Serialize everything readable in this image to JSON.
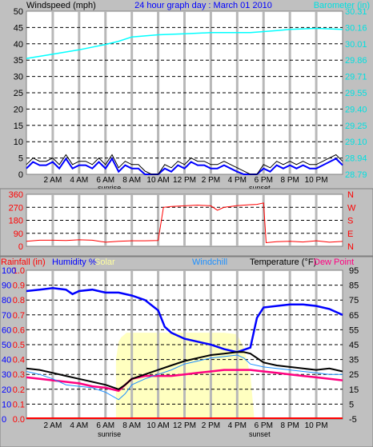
{
  "header": {
    "windspeed_label": "Windspeed (mph)",
    "title": "24 hour graph day : March 01 2010",
    "barometer_label": "Barometer (in)"
  },
  "time_axis": {
    "ticks": [
      "2 AM",
      "4 AM",
      "6 AM",
      "8 AM",
      "10 AM",
      "12 PM",
      "2 PM",
      "4 PM",
      "6 PM",
      "8 PM",
      "10 PM"
    ],
    "sunrise": "sunrise",
    "sunset": "sunset"
  },
  "colors": {
    "wind": "#000000",
    "gust": "#0000ff",
    "barometer": "#00ffff",
    "direction": "#ff0000",
    "rainfall": "#ff0000",
    "humidity": "#0000ff",
    "solar": "#ffffc0",
    "windchill": "#1e90ff",
    "temperature": "#000000",
    "dewpoint": "#ff0080",
    "axis_left_bottom": "#0000ff"
  },
  "chart_data": [
    {
      "type": "line",
      "panel": "wind_barometer",
      "title": "24 hour graph day : March 01 2010",
      "ylabel": "Windspeed (mph)",
      "ylim": [
        0,
        50
      ],
      "yticks": [
        0,
        5,
        10,
        15,
        20,
        25,
        30,
        35,
        40,
        45,
        50
      ],
      "y2label": "Barometer (in)",
      "y2lim": [
        28.79,
        30.31
      ],
      "y2ticks": [
        "28.79",
        "28.94",
        "29.10",
        "29.25",
        "29.40",
        "29.55",
        "29.71",
        "29.86",
        "30.01",
        "30.16",
        "30.31"
      ],
      "x_hours": [
        0,
        24
      ],
      "grid": true,
      "series": [
        {
          "name": "Windspeed (mph)",
          "x": [
            0,
            0.5,
            1,
            1.5,
            2,
            2.5,
            3,
            3.5,
            4,
            4.5,
            5,
            5.5,
            6,
            6.5,
            7,
            7.5,
            8,
            8.5,
            9,
            9.5,
            10,
            10.5,
            11,
            11.5,
            12,
            12.5,
            13,
            13.5,
            14,
            14.5,
            15,
            15.5,
            16,
            16.5,
            17,
            17.5,
            18,
            18.5,
            19,
            19.5,
            20,
            20.5,
            21,
            21.5,
            22,
            22.5,
            23,
            23.5,
            24
          ],
          "values": [
            3,
            5,
            4,
            4,
            5,
            3,
            6,
            3,
            4,
            4,
            3,
            5,
            3,
            6,
            2,
            4,
            3,
            3,
            1,
            0,
            0,
            3,
            2,
            4,
            3,
            5,
            4,
            4,
            3,
            3,
            4,
            3,
            2,
            1,
            0,
            0,
            3,
            2,
            4,
            3,
            4,
            3,
            4,
            3,
            3,
            4,
            5,
            6,
            4
          ]
        },
        {
          "name": "Barometer (in)",
          "x": [
            0,
            2,
            4,
            6,
            7,
            8,
            10,
            12,
            14,
            16,
            17,
            18,
            19,
            20,
            22,
            24
          ],
          "values": [
            29.87,
            29.91,
            29.95,
            30.0,
            30.03,
            30.07,
            30.09,
            30.1,
            30.11,
            30.11,
            30.11,
            30.12,
            30.13,
            30.14,
            30.15,
            30.14
          ]
        }
      ]
    },
    {
      "type": "line",
      "panel": "wind_direction",
      "ylim": [
        0,
        360
      ],
      "yticks": [
        0,
        90,
        180,
        270,
        360
      ],
      "y2ticks": [
        "N",
        "W",
        "S",
        "E",
        "N"
      ],
      "series": [
        {
          "name": "Wind direction",
          "x": [
            0,
            1,
            2,
            3,
            4,
            5,
            6,
            7,
            8,
            9,
            10,
            10.4,
            11,
            12,
            13,
            14,
            14.5,
            15,
            15.5,
            16,
            17,
            17.5,
            18,
            18.2,
            19,
            20,
            21,
            22,
            23,
            24
          ],
          "values": [
            35,
            42,
            42,
            40,
            45,
            42,
            28,
            35,
            38,
            38,
            40,
            270,
            275,
            280,
            285,
            280,
            250,
            270,
            275,
            282,
            288,
            290,
            300,
            25,
            32,
            35,
            30,
            38,
            28,
            34
          ]
        }
      ]
    },
    {
      "type": "line",
      "panel": "temperature",
      "ylabel": "Temperature (°F)",
      "ylim": [
        -5,
        95
      ],
      "yticks": [
        -5,
        5,
        15,
        25,
        35,
        45,
        55,
        65,
        75,
        85,
        95
      ],
      "left_axis": {
        "labels": [
          "0.0",
          "0.1",
          "0.2",
          "0.3",
          "0.4",
          "0.5",
          "0.6",
          "0.7",
          "0.8",
          "0.9",
          "1.0"
        ],
        "humidity_labels": [
          "0",
          "10",
          "20",
          "30",
          "40",
          "50",
          "60",
          "70",
          "80",
          "90",
          "100"
        ]
      },
      "legend": [
        "Rainfall (in)",
        "Humidity %",
        "Solar",
        "Windchill",
        "Temperature (°F)",
        "Dew Point"
      ],
      "series": [
        {
          "name": "Temperature",
          "x": [
            0,
            1,
            2,
            3,
            4,
            5,
            6,
            7,
            7.5,
            8,
            9,
            10,
            11,
            12,
            13,
            14,
            15,
            16,
            16.5,
            17,
            18,
            19,
            20,
            21,
            22,
            23,
            24
          ],
          "values": [
            29,
            28,
            26,
            24,
            22,
            20,
            18,
            15,
            18,
            22,
            25,
            28,
            31,
            34,
            36,
            38,
            39,
            40,
            40,
            39,
            33,
            31,
            30,
            29,
            28,
            29,
            27
          ]
        },
        {
          "name": "Windchill",
          "x": [
            0,
            1,
            2,
            3,
            4,
            5,
            6,
            7,
            7.5,
            8,
            9,
            10,
            11,
            12,
            13,
            14,
            15,
            16,
            16.5,
            17,
            18,
            19,
            20,
            21,
            22,
            23,
            24
          ],
          "values": [
            27,
            25,
            22,
            18,
            17,
            16,
            13,
            8,
            12,
            18,
            22,
            25,
            28,
            32,
            34,
            36,
            37,
            38,
            36,
            32,
            30,
            29,
            28,
            27,
            26,
            25,
            25
          ]
        },
        {
          "name": "Dew Point",
          "x": [
            0,
            1,
            2,
            3,
            4,
            5,
            6,
            7,
            7.5,
            8,
            9,
            10,
            11,
            12,
            13,
            14,
            15,
            16,
            17,
            18,
            19,
            20,
            21,
            22,
            23,
            24
          ],
          "values": [
            23,
            22,
            21,
            20,
            19,
            17,
            16,
            14,
            18,
            22,
            24,
            24,
            24,
            25,
            26,
            27,
            28,
            28,
            28,
            27,
            26,
            25,
            24,
            23,
            22,
            21
          ]
        },
        {
          "name": "Humidity",
          "x": [
            0,
            1,
            2,
            3,
            3.5,
            4,
            5,
            6,
            7,
            8,
            9,
            10,
            10.5,
            11,
            12,
            13,
            14,
            15,
            16,
            17,
            17.5,
            18,
            19,
            20,
            21,
            22,
            23,
            24
          ],
          "values": [
            86,
            87,
            88,
            87,
            84,
            86,
            87,
            85,
            85,
            83,
            80,
            73,
            62,
            58,
            54,
            52,
            50,
            47,
            45,
            48,
            68,
            75,
            76,
            77,
            77,
            76,
            74,
            70
          ]
        },
        {
          "name": "Solar",
          "x": [
            6.8,
            7,
            7.2,
            7.6,
            8,
            9,
            10,
            11,
            12,
            13,
            14,
            15,
            16,
            16.5,
            17,
            17.3
          ],
          "values": [
            0.4,
            0.52,
            0.55,
            0.58,
            0.58,
            0.58,
            0.58,
            0.58,
            0.58,
            0.58,
            0.58,
            0.58,
            0.57,
            0.48,
            0.3,
            0.0
          ]
        },
        {
          "name": "Rainfall",
          "x": [
            0,
            24
          ],
          "values": [
            0.0,
            0.0
          ]
        }
      ]
    }
  ]
}
